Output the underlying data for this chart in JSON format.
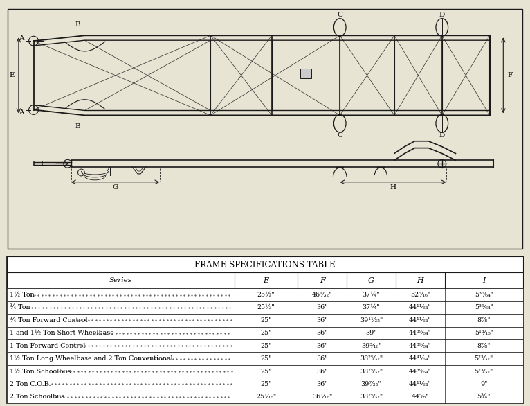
{
  "title": "FRAME SPECIFICATIONS TABLE",
  "col_headers": [
    "Series",
    "E",
    "F",
    "G",
    "H",
    "I"
  ],
  "rows": [
    [
      "1½ Ton",
      "25½\"",
      "46¹⁄₃₂\"",
      "37¼\"",
      "52⁵⁄₁₆\"",
      "5³⁵⁄₆₄\""
    ],
    [
      "¾ Ton",
      "25½\"",
      "36\"",
      "37¼\"",
      "44¹¹⁄₆₄\"",
      "5³⁵⁄₆₄\""
    ],
    [
      "¾ Ton Forward Control",
      "25\"",
      "36\"",
      "39¹¹⁄₃₂\"",
      "44¹¹⁄₆₄\"",
      "8⁷⁄₈\""
    ],
    [
      "1 and 1½ Ton Short Wheelbase",
      "25\"",
      "36\"",
      "39\"",
      "44³⁹⁄₆₄\"",
      "5¹³⁄₁₆\""
    ],
    [
      "1 Ton Forward Control",
      "25\"",
      "36\"",
      "39³⁄₁₆\"",
      "44³⁹⁄₆₄\"",
      "8⁷⁄₈\""
    ],
    [
      "1½ Ton Long Wheelbase and 2 Ton Conventional",
      "25\"",
      "36\"",
      "38²⁵⁄₃₂\"",
      "44⁴¹⁄₆₄\"",
      "5²³⁄₃₂\""
    ],
    [
      "1½ Ton Schoolbus",
      "25\"",
      "36\"",
      "38²⁵⁄₃₂\"",
      "44³⁹⁄₆₄\"",
      "5²³⁄₃₂\""
    ],
    [
      "2 Ton C.O.E.",
      "25\"",
      "36\"",
      "39⁷⁄₃₂\"",
      "44¹¹⁄₆₄\"",
      "9\""
    ],
    [
      "2 Ton Schoolbus",
      "25¹⁄₁₆\"",
      "36¹⁄₁₆\"",
      "38²⁵⁄₃₂\"",
      "44⁵⁄₈\"",
      "5¾\""
    ]
  ],
  "bg_color": "#e8e4d4",
  "line_color": "#1a1a1a",
  "table_bg": "#ffffff"
}
